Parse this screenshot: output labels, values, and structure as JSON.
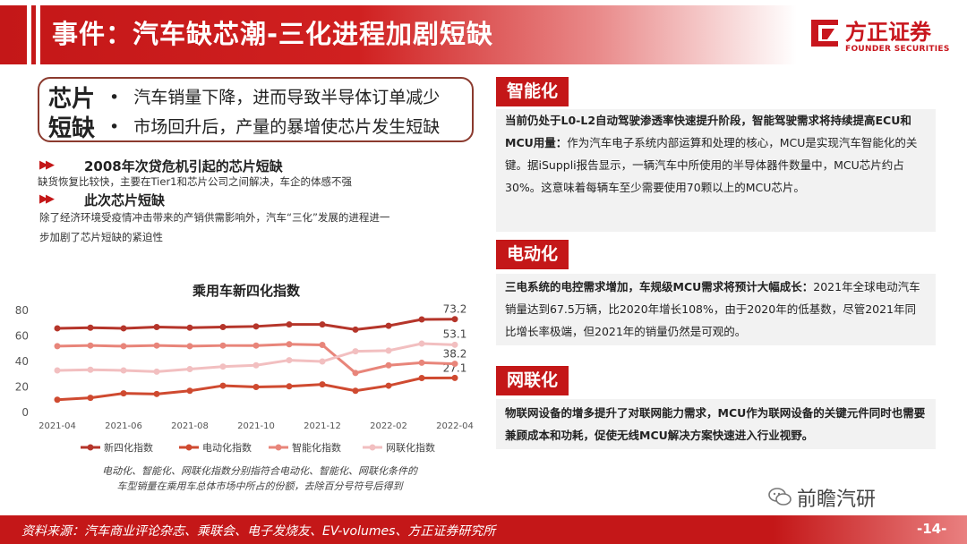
{
  "header": {
    "title": "事件：汽车缺芯潮-三化进程加剧短缺"
  },
  "logo": {
    "name": "方正证券",
    "english": "FOUNDER SECURITIES"
  },
  "chip_box": {
    "label_line1": "芯片",
    "label_line2": "短缺",
    "bullet": "•",
    "point1": "汽车销量下降，进而导致半导体订单减少",
    "point2": "市场回升后，产量的暴增使芯片发生短缺"
  },
  "sections": [
    {
      "arrow": "▶▶",
      "title": "2008年次贷危机引起的芯片短缺",
      "text": "缺货恢复比较快，主要在Tier1和芯片公司之间解决，车企的体感不强"
    },
    {
      "arrow": "▶▶",
      "title": "此次芯片短缺",
      "text_line1": "除了经济环境受疫情冲击带来的产销供需影响外，汽车“三化”发展的进程进一",
      "text_line2": "步加剧了芯片短缺的紧迫性"
    }
  ],
  "chart_data": {
    "type": "line",
    "title": "乘用车新四化指数",
    "x": [
      "2021-04",
      "2021-05",
      "2021-06",
      "2021-07",
      "2021-08",
      "2021-09",
      "2021-10",
      "2021-11",
      "2021-12",
      "2022-01",
      "2022-02",
      "2022-03",
      "2022-04"
    ],
    "x_tick_labels": [
      "2021-04",
      "2021-06",
      "2021-08",
      "2021-10",
      "2021-12",
      "2022-02",
      "2022-04"
    ],
    "ylim": [
      0,
      80
    ],
    "y_ticks": [
      "0",
      "20",
      "40",
      "60",
      "80"
    ],
    "grid": false,
    "legend": "bottom",
    "series": [
      {
        "name": "新四化指数",
        "color": "#b5352a",
        "values": [
          66,
          66.5,
          66,
          67,
          66.5,
          67,
          67.5,
          69,
          69,
          65,
          68,
          73,
          73.2
        ],
        "end_label": "73.2"
      },
      {
        "name": "电动化指数",
        "color": "#cf4a30",
        "values": [
          10,
          11.5,
          15,
          14.5,
          17,
          21,
          20,
          20.5,
          22,
          17,
          21,
          27,
          27.1
        ],
        "end_label": "27.1"
      },
      {
        "name": "智能化指数",
        "color": "#e8857a",
        "values": [
          52,
          52.5,
          52,
          52.5,
          52,
          52.5,
          52.5,
          53.5,
          53,
          31,
          37,
          39,
          38.2
        ],
        "end_label": "38.2"
      },
      {
        "name": "网联化指数",
        "color": "#f2bfc0",
        "values": [
          33,
          33.5,
          33,
          32,
          34,
          36,
          37,
          41,
          40,
          48,
          48.5,
          54,
          53.1
        ],
        "end_label": "53.1"
      }
    ],
    "note_line1": "电动化、智能化、网联化指数分别指符合电动化、智能化、网联化条件的",
    "note_line2": "车型销量在乘用车总体市场中所占的份额，去除百分号符号后得到"
  },
  "panels": {
    "intelligent": {
      "tab": "智能化",
      "bold": "当前仍处于L0-L2自动驾驶渗透率快速提升阶段，智能驾驶需求将持续提高ECU和MCU用量：",
      "text": "作为汽车电子系统内部运算和处理的核心，MCU是实现汽车智能化的关键。据iSuppli报告显示，一辆汽车中所使用的半导体器件数量中，MCU芯片约占30%。这意味着每辆车至少需要使用70颗以上的MCU芯片。"
    },
    "electric": {
      "tab": "电动化",
      "bold": "三电系统的电控需求增加，车规级MCU需求将预计大幅成长：",
      "text": "2021年全球电动汽车销量达到67.5万辆，比2020年增长108%，由于2020年的低基数，尽管2021年同比增长率极端，但2021年的销量仍然是可观的。"
    },
    "connected": {
      "tab": "网联化",
      "bold": "物联网设备的增多提升了对联网能力需求，MCU作为联网设备的关键元件同时也需要兼顾成本和功耗，促使无线MCU解决方案快速进入行业视野。"
    }
  },
  "footer": {
    "source": "资料来源：汽车商业评论杂志、乘联会、电子发烧友、EV-volumes、方正证券研究所",
    "page": "-14-"
  },
  "watermark": {
    "text": "前瞻汽研",
    "icon": "wechat-icon"
  }
}
